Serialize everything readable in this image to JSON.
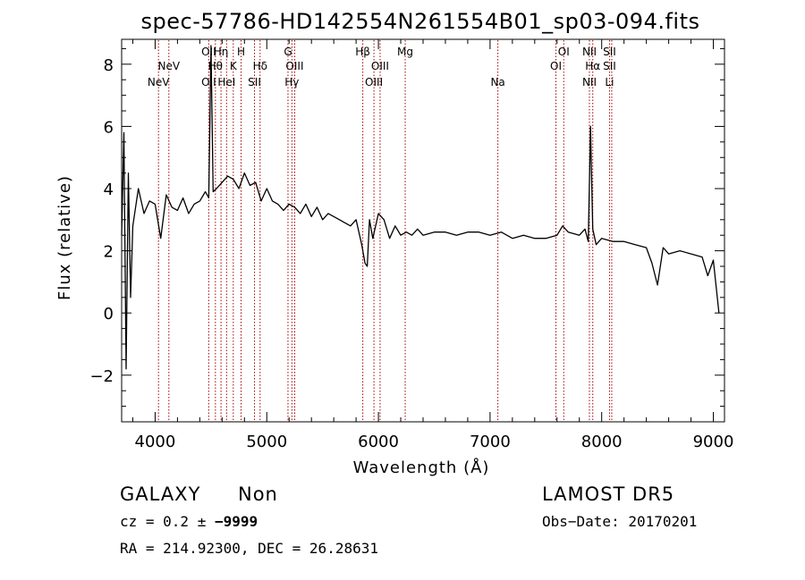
{
  "chart_data": {
    "type": "line",
    "title": "spec-57786-HD142554N261554B01_sp03-094.fits",
    "xlabel": "Wavelength (Å)",
    "ylabel": "Flux (relative)",
    "xlim": [
      3700,
      9100
    ],
    "ylim": [
      -3.5,
      8.8
    ],
    "x_ticks": [
      "4000",
      "5000",
      "6000",
      "7000",
      "8000",
      "9000"
    ],
    "y_ticks": [
      "−2",
      "0",
      "2",
      "4",
      "6",
      "8"
    ],
    "x_tick_values": [
      4000,
      5000,
      6000,
      7000,
      8000,
      9000
    ],
    "y_tick_values": [
      -2,
      0,
      2,
      4,
      6,
      8
    ],
    "grid": false,
    "line_color": "#000000",
    "marker_color": "#aa0000",
    "series": [
      {
        "x": [
          3700,
          3720,
          3740,
          3760,
          3780,
          3800,
          3850,
          3900,
          3950,
          4000,
          4050,
          4100,
          4150,
          4200,
          4250,
          4300,
          4350,
          4400,
          4450,
          4480,
          4500,
          4520,
          4550,
          4600,
          4650,
          4700,
          4750,
          4800,
          4850,
          4900,
          4950,
          5000,
          5050,
          5100,
          5150,
          5200,
          5250,
          5300,
          5350,
          5400,
          5450,
          5500,
          5550,
          5600,
          5650,
          5700,
          5750,
          5800,
          5850,
          5880,
          5900,
          5920,
          5950,
          6000,
          6050,
          6100,
          6150,
          6200,
          6250,
          6300,
          6350,
          6400,
          6500,
          6600,
          6700,
          6800,
          6900,
          7000,
          7100,
          7200,
          7300,
          7400,
          7500,
          7600,
          7650,
          7700,
          7800,
          7850,
          7880,
          7900,
          7920,
          7950,
          8000,
          8100,
          8200,
          8300,
          8400,
          8450,
          8500,
          8550,
          8600,
          8700,
          8800,
          8900,
          8950,
          9000,
          9050
        ],
        "y": [
          2.5,
          5.8,
          -1.8,
          4.5,
          0.5,
          2.8,
          4.0,
          3.2,
          3.6,
          3.5,
          2.4,
          3.8,
          3.4,
          3.3,
          3.7,
          3.2,
          3.5,
          3.6,
          3.9,
          3.7,
          8.6,
          3.9,
          4.0,
          4.2,
          4.4,
          4.3,
          4.0,
          4.5,
          4.1,
          4.2,
          3.6,
          4.0,
          3.6,
          3.5,
          3.3,
          3.5,
          3.4,
          3.2,
          3.5,
          3.1,
          3.4,
          3.0,
          3.2,
          3.1,
          3.0,
          2.9,
          2.8,
          3.0,
          2.2,
          1.6,
          1.5,
          3.0,
          2.4,
          3.2,
          3.0,
          2.4,
          2.8,
          2.5,
          2.6,
          2.5,
          2.7,
          2.5,
          2.6,
          2.6,
          2.5,
          2.6,
          2.6,
          2.5,
          2.6,
          2.4,
          2.5,
          2.4,
          2.4,
          2.5,
          2.8,
          2.6,
          2.5,
          2.7,
          2.3,
          6.0,
          2.7,
          2.2,
          2.4,
          2.3,
          2.3,
          2.2,
          2.1,
          1.6,
          0.9,
          2.1,
          1.9,
          2.0,
          1.9,
          1.8,
          1.2,
          1.7,
          0.0
        ]
      }
    ],
    "lines": [
      {
        "x": 4030,
        "labels": [
          "NeV"
        ],
        "rows": [
          3
        ]
      },
      {
        "x": 4123,
        "labels": [
          "NeV"
        ],
        "rows": [
          2
        ]
      },
      {
        "x": 4480,
        "labels": [
          "OII",
          "OII"
        ],
        "rows": [
          1,
          3
        ]
      },
      {
        "x": 4540,
        "labels": [
          "Hθ"
        ],
        "rows": [
          2
        ]
      },
      {
        "x": 4590,
        "labels": [
          "Hη"
        ],
        "rows": [
          1
        ]
      },
      {
        "x": 4640,
        "labels": [
          "HeI"
        ],
        "rows": [
          3
        ]
      },
      {
        "x": 4700,
        "labels": [
          "K"
        ],
        "rows": [
          2
        ]
      },
      {
        "x": 4770,
        "labels": [
          "H"
        ],
        "rows": [
          1
        ]
      },
      {
        "x": 4890,
        "labels": [
          "SII"
        ],
        "rows": [
          3
        ]
      },
      {
        "x": 4940,
        "labels": [
          "Hδ"
        ],
        "rows": [
          2
        ]
      },
      {
        "x": 5190,
        "labels": [
          "G"
        ],
        "rows": [
          1
        ]
      },
      {
        "x": 5225,
        "labels": [
          "Hγ"
        ],
        "rows": [
          3
        ]
      },
      {
        "x": 5250,
        "labels": [
          "OIII"
        ],
        "rows": [
          2
        ]
      },
      {
        "x": 5860,
        "labels": [
          "Hβ"
        ],
        "rows": [
          1
        ]
      },
      {
        "x": 5960,
        "labels": [
          "OIII"
        ],
        "rows": [
          3
        ]
      },
      {
        "x": 6015,
        "labels": [
          "OIII"
        ],
        "rows": [
          2
        ]
      },
      {
        "x": 6240,
        "labels": [
          "Mg"
        ],
        "rows": [
          1
        ]
      },
      {
        "x": 7070,
        "labels": [
          "Na"
        ],
        "rows": [
          3
        ]
      },
      {
        "x": 7590,
        "labels": [
          "OI"
        ],
        "rows": [
          2
        ]
      },
      {
        "x": 7660,
        "labels": [
          "OI"
        ],
        "rows": [
          1
        ]
      },
      {
        "x": 7890,
        "labels": [
          "NII",
          "NII"
        ],
        "rows": [
          1,
          3
        ]
      },
      {
        "x": 7920,
        "labels": [
          "Hα"
        ],
        "rows": [
          2
        ]
      },
      {
        "x": 8070,
        "labels": [
          "SII",
          "SII",
          "Li"
        ],
        "rows": [
          1,
          2,
          3
        ]
      },
      {
        "x": 8090,
        "labels": [],
        "rows": []
      }
    ]
  },
  "info": {
    "class": "GALAXY",
    "subclass": "Non",
    "survey": "LAMOST  DR5",
    "cz_prefix": "cz = 0.2 ± ",
    "cz_err": "−9999",
    "obs_date": "Obs−Date: 20170201",
    "coords": "RA = 214.92300, DEC =  26.28631"
  }
}
